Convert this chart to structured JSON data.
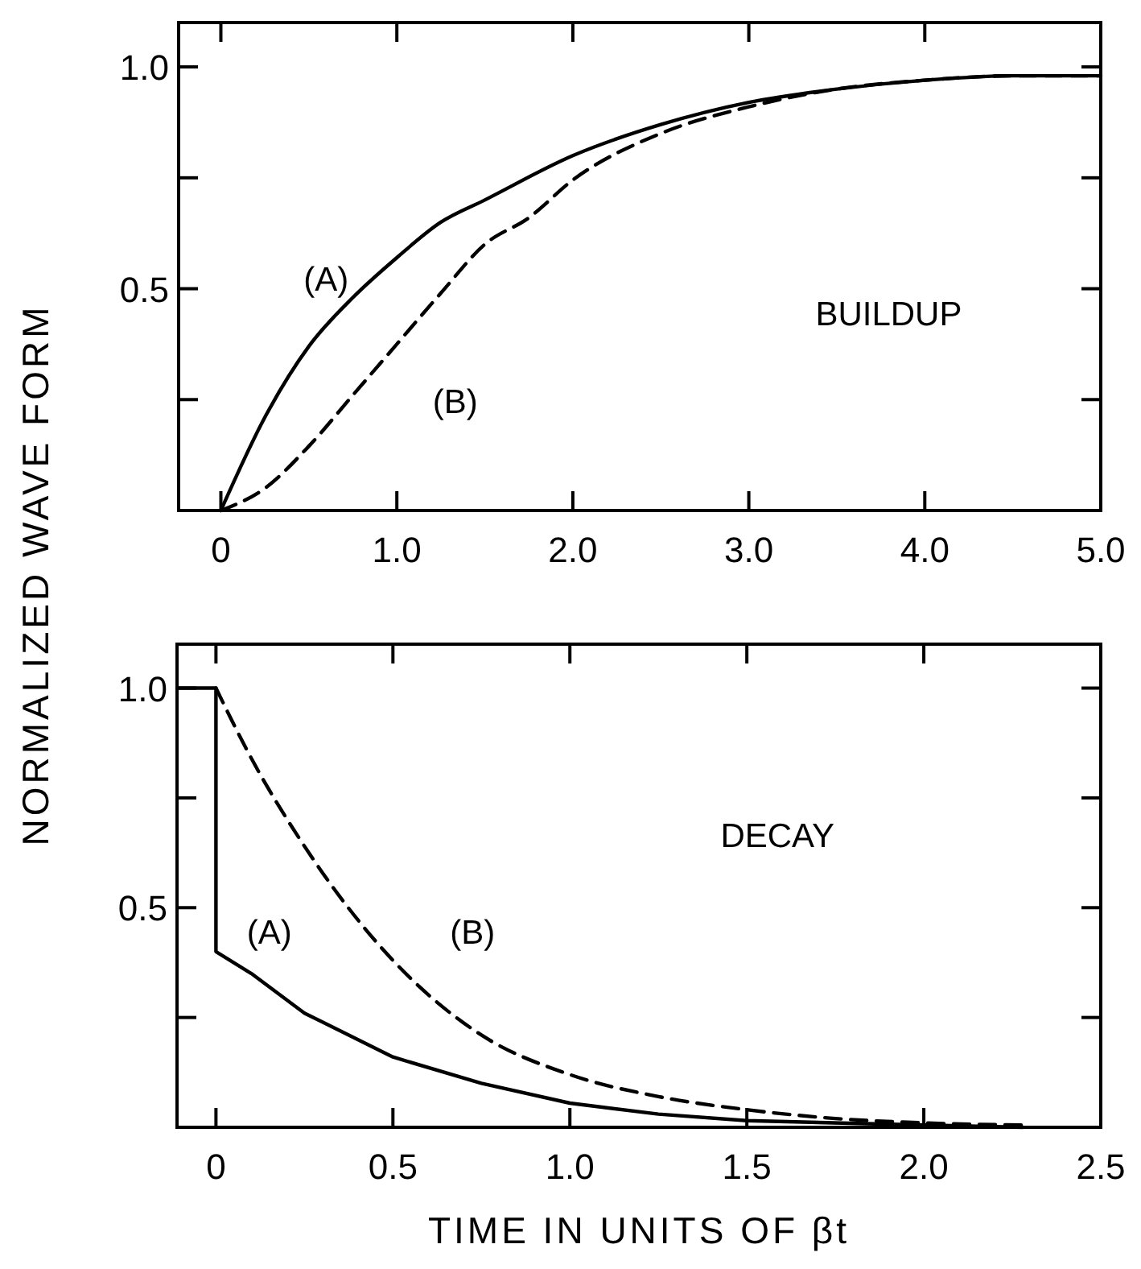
{
  "chart_data": [
    {
      "type": "line",
      "ylabel": "NORMALIZED WAVE FORM",
      "xlim": [
        -0.24,
        5.0
      ],
      "ylim": [
        0,
        1.1
      ],
      "xticks": [
        0,
        {
          "value": 1,
          "label": "1.0"
        },
        {
          "value": 2,
          "label": "2.0"
        },
        {
          "value": 3,
          "label": "3.0"
        },
        {
          "value": 4,
          "label": "4.0"
        },
        {
          "value": 5,
          "label": "5.0"
        }
      ],
      "yticks": [
        {
          "value": 0.25,
          "label": null
        },
        0.5,
        {
          "value": 0.75,
          "label": null
        },
        {
          "value": 1,
          "label": "1.0"
        }
      ],
      "grid": false,
      "series": [
        {
          "color": "#000000",
          "line_style": "solid",
          "x": [
            0,
            0.25,
            0.5,
            0.75,
            1.0,
            1.25,
            1.5,
            2.0,
            2.5,
            3.0,
            3.5,
            4.0,
            4.5,
            5.0
          ],
          "values": [
            0,
            0.21,
            0.37,
            0.48,
            0.57,
            0.65,
            0.7,
            0.8,
            0.87,
            0.92,
            0.95,
            0.97,
            0.98,
            0.98
          ]
        },
        {
          "color": "#000000",
          "line_style": "dashed",
          "x": [
            0,
            0.25,
            0.5,
            0.75,
            1.0,
            1.25,
            1.5,
            1.75,
            2.0,
            2.5,
            3.0,
            3.5,
            4.0,
            4.5,
            5.0
          ],
          "values": [
            0,
            0.05,
            0.145,
            0.26,
            0.375,
            0.49,
            0.6,
            0.66,
            0.745,
            0.85,
            0.91,
            0.95,
            0.97,
            0.98,
            0.98
          ]
        }
      ],
      "annotations": [
        "(A)",
        "(B)",
        "BUILDUP"
      ]
    },
    {
      "type": "line",
      "xlabel": "TIME IN UNITS OF βt",
      "xlim": [
        -0.11,
        2.5
      ],
      "ylim": [
        0,
        1.1
      ],
      "xticks": [
        0,
        0.5,
        {
          "value": 1,
          "label": "1.0"
        },
        1.5,
        {
          "value": 2,
          "label": "2.0"
        },
        2.5
      ],
      "yticks": [
        {
          "value": 0.25,
          "label": null
        },
        0.5,
        {
          "value": 0.75,
          "label": null
        },
        {
          "value": 1,
          "label": "1.0"
        }
      ],
      "grid": false,
      "series": [
        {
          "color": "#000000",
          "line_style": "solid",
          "x": [
            -0.11,
            0,
            0,
            0.1,
            0.25,
            0.5,
            0.75,
            1.0,
            1.25,
            1.5,
            2.0,
            2.28
          ],
          "values": [
            1,
            1,
            0.4,
            0.35,
            0.26,
            0.16,
            0.1,
            0.055,
            0.03,
            0.015,
            0.005,
            0
          ]
        },
        {
          "color": "#000000",
          "line_style": "dashed",
          "x": [
            0,
            0.1,
            0.25,
            0.5,
            0.75,
            1.0,
            1.25,
            1.5,
            1.75,
            2.0,
            2.28
          ],
          "values": [
            1,
            0.84,
            0.64,
            0.38,
            0.21,
            0.12,
            0.07,
            0.04,
            0.02,
            0.01,
            0.005
          ]
        }
      ],
      "annotations": [
        "(A)",
        "(B)",
        "DECAY"
      ]
    }
  ]
}
